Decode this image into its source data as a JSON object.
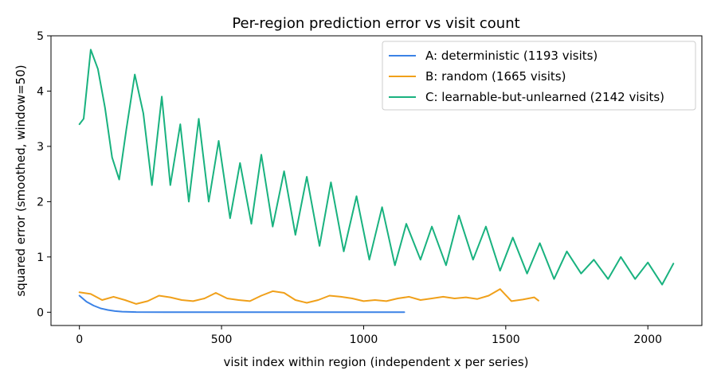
{
  "chart_data": {
    "type": "line",
    "title": "Per-region prediction error vs visit count",
    "xlabel": "visit index within region (independent x per series)",
    "ylabel": "squared error (smoothed, window=50)",
    "xlim": [
      -100,
      2190
    ],
    "ylim": [
      -0.24,
      5.0
    ],
    "x_ticks": [
      0,
      500,
      1000,
      1500,
      2000
    ],
    "y_ticks": [
      0,
      1,
      2,
      3,
      4,
      5
    ],
    "grid": false,
    "legend_position": "top-right",
    "series": [
      {
        "name": "A: deterministic (1193 visits)",
        "color": "#3b82e6",
        "x": [
          0,
          25,
          50,
          75,
          100,
          125,
          150,
          200,
          300,
          400,
          600,
          800,
          1000,
          1143
        ],
        "y": [
          0.3,
          0.19,
          0.12,
          0.07,
          0.04,
          0.02,
          0.01,
          0.004,
          0.0,
          0.0,
          0.0,
          0.0,
          0.0,
          0.0
        ]
      },
      {
        "name": "B: random (1665 visits)",
        "color": "#f0a01a",
        "x": [
          0,
          40,
          80,
          120,
          160,
          200,
          240,
          280,
          320,
          360,
          400,
          440,
          480,
          520,
          560,
          600,
          640,
          680,
          720,
          760,
          800,
          840,
          880,
          920,
          960,
          1000,
          1040,
          1080,
          1120,
          1160,
          1200,
          1240,
          1280,
          1320,
          1360,
          1400,
          1440,
          1480,
          1520,
          1560,
          1600,
          1615
        ],
        "y": [
          0.36,
          0.33,
          0.22,
          0.28,
          0.22,
          0.15,
          0.2,
          0.3,
          0.27,
          0.22,
          0.2,
          0.25,
          0.35,
          0.25,
          0.22,
          0.2,
          0.3,
          0.38,
          0.35,
          0.22,
          0.17,
          0.22,
          0.3,
          0.28,
          0.25,
          0.2,
          0.22,
          0.2,
          0.25,
          0.28,
          0.22,
          0.25,
          0.28,
          0.25,
          0.27,
          0.24,
          0.3,
          0.42,
          0.2,
          0.23,
          0.27,
          0.21
        ]
      },
      {
        "name": "C: learnable-but-unlearned (2142 visits)",
        "color": "#19b27f",
        "x": [
          0,
          15,
          40,
          65,
          90,
          115,
          140,
          165,
          195,
          225,
          255,
          290,
          320,
          355,
          385,
          420,
          455,
          490,
          530,
          565,
          605,
          640,
          680,
          720,
          760,
          800,
          845,
          885,
          930,
          975,
          1020,
          1065,
          1110,
          1150,
          1200,
          1240,
          1290,
          1335,
          1385,
          1430,
          1480,
          1525,
          1575,
          1620,
          1670,
          1715,
          1765,
          1810,
          1860,
          1905,
          1955,
          2000,
          2050,
          2090
        ],
        "y": [
          3.4,
          3.5,
          4.75,
          4.4,
          3.7,
          2.8,
          2.4,
          3.3,
          4.3,
          3.6,
          2.3,
          3.9,
          2.3,
          3.4,
          2.0,
          3.5,
          2.0,
          3.1,
          1.7,
          2.7,
          1.6,
          2.85,
          1.55,
          2.55,
          1.4,
          2.45,
          1.2,
          2.35,
          1.1,
          2.1,
          0.95,
          1.9,
          0.85,
          1.6,
          0.95,
          1.55,
          0.85,
          1.75,
          0.95,
          1.55,
          0.75,
          1.35,
          0.7,
          1.25,
          0.6,
          1.1,
          0.7,
          0.95,
          0.6,
          1.0,
          0.6,
          0.9,
          0.5,
          0.88
        ]
      }
    ]
  }
}
